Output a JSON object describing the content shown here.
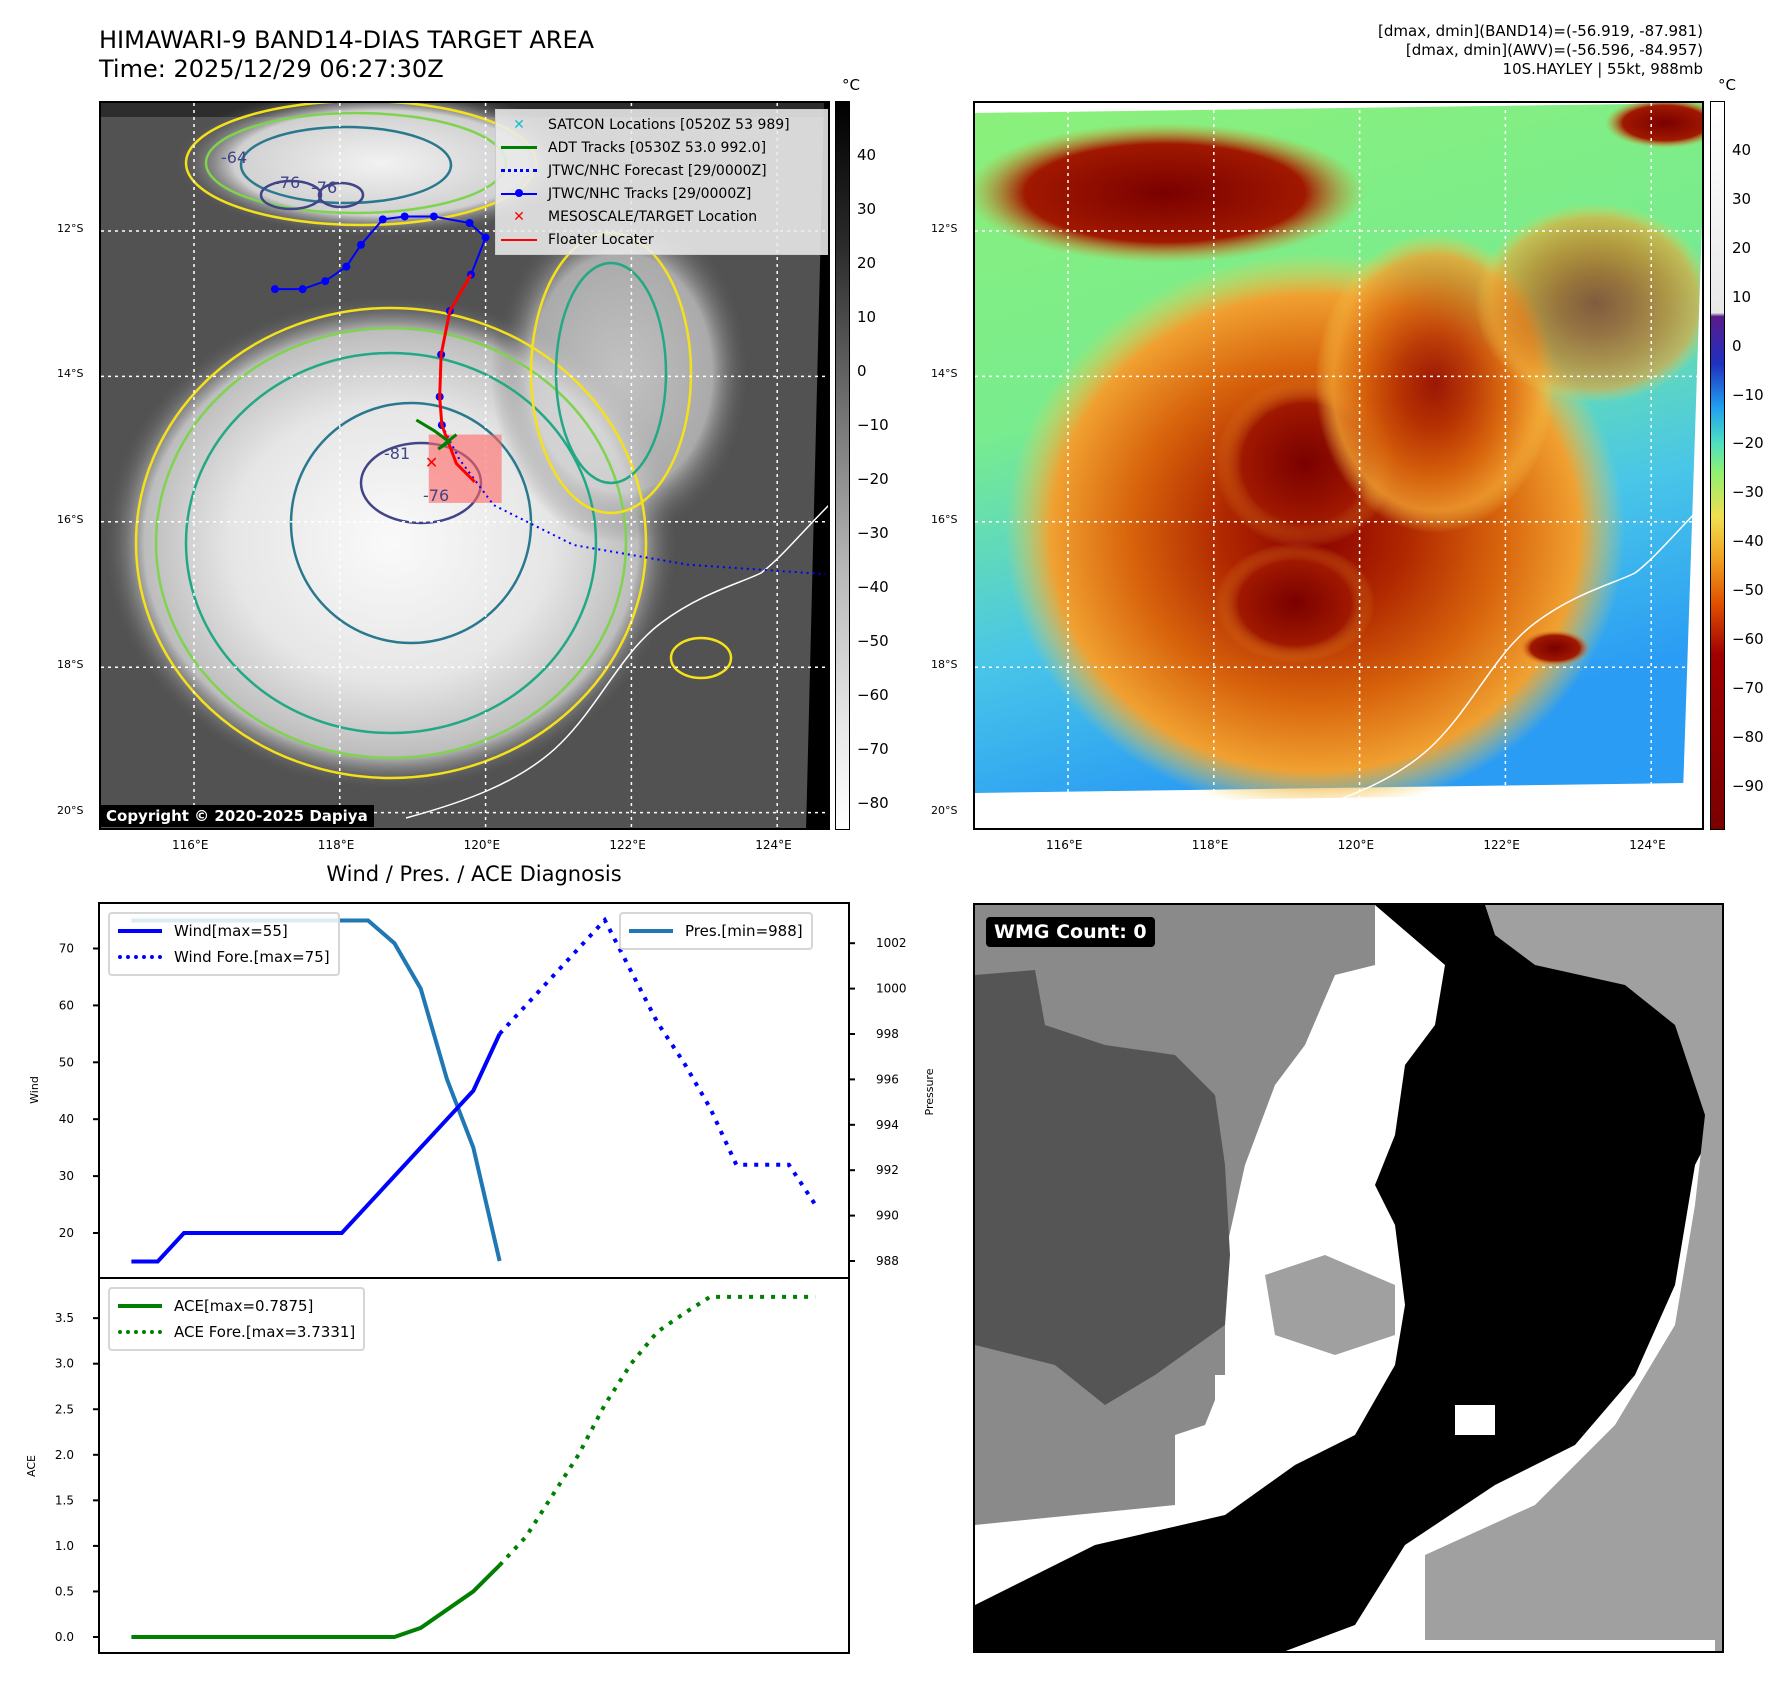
{
  "header": {
    "title_line1": "HIMAWARI-9 BAND14-DIAS TARGET AREA",
    "title_line2": "Time: 2025/12/29 06:27:30Z",
    "info_line1": "[dmax, dmin](BAND14)=(-56.919, -87.981)",
    "info_line2": "[dmax, dmin](AWV)=(-56.596, -84.957)",
    "info_line3": "10S.HAYLEY | 55kt, 988mb"
  },
  "map_axes": {
    "lat_labels": [
      "12°S",
      "14°S",
      "16°S",
      "18°S",
      "20°S"
    ],
    "lon_labels": [
      "116°E",
      "118°E",
      "120°E",
      "122°E",
      "124°E"
    ]
  },
  "ir_map": {
    "colorbar_unit": "°C",
    "colorbar_ticks": [
      "40",
      "30",
      "20",
      "10",
      "0",
      "−10",
      "−20",
      "−30",
      "−40",
      "−50",
      "−60",
      "−70",
      "−80"
    ],
    "contour_labels": [
      "-64",
      "-76",
      "-76",
      "-76",
      "-81"
    ],
    "copyright": "Copyright © 2020-2025 Dapiya",
    "legend": [
      {
        "label": "SATCON Locations [0520Z 53 989]",
        "marker": "x",
        "color": "#17becf"
      },
      {
        "label": "ADT Tracks [0530Z 53.0 992.0]",
        "marker": "line",
        "color": "#008000"
      },
      {
        "label": "JTWC/NHC Forecast [29/0000Z]",
        "marker": "dotted",
        "color": "#0000ff"
      },
      {
        "label": "JTWC/NHC Tracks [29/0000Z]",
        "marker": "line-dot",
        "color": "#0000ff"
      },
      {
        "label": "MESOSCALE/TARGET Location",
        "marker": "x",
        "color": "#ff0000"
      },
      {
        "label": "Floater Locater",
        "marker": "line",
        "color": "#ff0000"
      }
    ],
    "jtwc_track": [
      [
        117.11,
        12.8
      ],
      [
        117.49,
        12.8
      ],
      [
        117.8,
        12.69
      ],
      [
        118.09,
        12.49
      ],
      [
        118.29,
        12.19
      ],
      [
        118.59,
        11.84
      ],
      [
        118.89,
        11.8
      ],
      [
        119.29,
        11.8
      ],
      [
        119.78,
        11.89
      ],
      [
        120.0,
        12.09
      ],
      [
        119.8,
        12.6
      ],
      [
        119.51,
        13.1
      ],
      [
        119.39,
        13.7
      ],
      [
        119.37,
        14.28
      ],
      [
        119.4,
        14.67
      ]
    ],
    "jtwc_forecast": [
      [
        119.4,
        14.67
      ],
      [
        119.64,
        15.14
      ],
      [
        120.11,
        15.77
      ],
      [
        121.21,
        16.32
      ],
      [
        122.78,
        16.59
      ],
      [
        124.66,
        16.72
      ]
    ],
    "target_location": [
      119.25,
      15.18
    ],
    "floater_box": {
      "lon": [
        119.22,
        120.22
      ],
      "lat": [
        14.8,
        15.74
      ]
    }
  },
  "awv_map": {
    "colorbar_unit": "°C",
    "colorbar_ticks": [
      "40",
      "30",
      "20",
      "10",
      "0",
      "−10",
      "−20",
      "−30",
      "−40",
      "−50",
      "−60",
      "−70",
      "−80",
      "−90"
    ]
  },
  "wmg": {
    "count_label": "WMG Count: 0"
  },
  "chart_title": "Wind / Pres. / ACE Diagnosis",
  "chart_data": [
    {
      "type": "line",
      "title": "Wind / Pres. / ACE Diagnosis",
      "ylabel": "Wind",
      "y2label": "Pressure",
      "ylim": [
        13,
        78
      ],
      "y2lim": [
        987.3,
        1003.3
      ],
      "yticks": [
        20,
        30,
        40,
        50,
        60,
        70
      ],
      "y2ticks": [
        988,
        990,
        992,
        994,
        996,
        998,
        1000,
        1002
      ],
      "series": [
        {
          "name": "Wind[max=55]",
          "axis": "left",
          "style": "solid",
          "color": "#0000ff",
          "x": [
            0,
            1,
            2,
            3,
            4,
            5,
            6,
            7,
            8,
            9,
            10,
            11,
            12,
            13,
            14
          ],
          "values": [
            15,
            15,
            20,
            20,
            20,
            20,
            20,
            20,
            20,
            25,
            30,
            35,
            40,
            45,
            55
          ]
        },
        {
          "name": "Wind Fore.[max=75]",
          "axis": "left",
          "style": "dotted",
          "color": "#0000ff",
          "x": [
            14,
            18,
            19,
            20,
            21,
            22,
            23,
            24,
            25,
            26
          ],
          "values": [
            55,
            75,
            66,
            57,
            50,
            42,
            32,
            32,
            32,
            25
          ]
        },
        {
          "name": "Pres.[min=988]",
          "axis": "right",
          "style": "solid",
          "color": "#1f77b4",
          "x": [
            0,
            1,
            2,
            3,
            4,
            5,
            6,
            7,
            8,
            9,
            10,
            11,
            12,
            13,
            14
          ],
          "values": [
            1003,
            1003,
            1003,
            1003,
            1003,
            1003,
            1003,
            1003,
            1003,
            1003,
            1002,
            1000,
            996,
            993,
            988
          ]
        }
      ]
    },
    {
      "type": "line",
      "ylabel": "ACE",
      "ylim": [
        -0.17,
        3.95
      ],
      "yticks": [
        "0.0",
        "0.5",
        "1.0",
        "1.5",
        "2.0",
        "2.5",
        "3.0",
        "3.5"
      ],
      "series": [
        {
          "name": "ACE[max=0.7875]",
          "style": "solid",
          "color": "#008000",
          "x": [
            0,
            1,
            2,
            3,
            4,
            5,
            6,
            7,
            8,
            9,
            10,
            11,
            12,
            13,
            14
          ],
          "values": [
            0,
            0,
            0,
            0,
            0,
            0,
            0,
            0,
            0,
            0,
            0,
            0.1,
            0.3,
            0.5,
            0.7875
          ]
        },
        {
          "name": "ACE Fore.[max=3.7331]",
          "style": "dotted",
          "color": "#008000",
          "x": [
            14,
            15,
            16,
            17,
            18,
            19,
            20,
            21,
            22,
            23,
            24,
            25,
            26
          ],
          "values": [
            0.7875,
            1.1,
            1.55,
            2.0,
            2.55,
            3.0,
            3.35,
            3.55,
            3.7331,
            3.7331,
            3.7331,
            3.7331,
            3.7331
          ]
        }
      ]
    }
  ]
}
